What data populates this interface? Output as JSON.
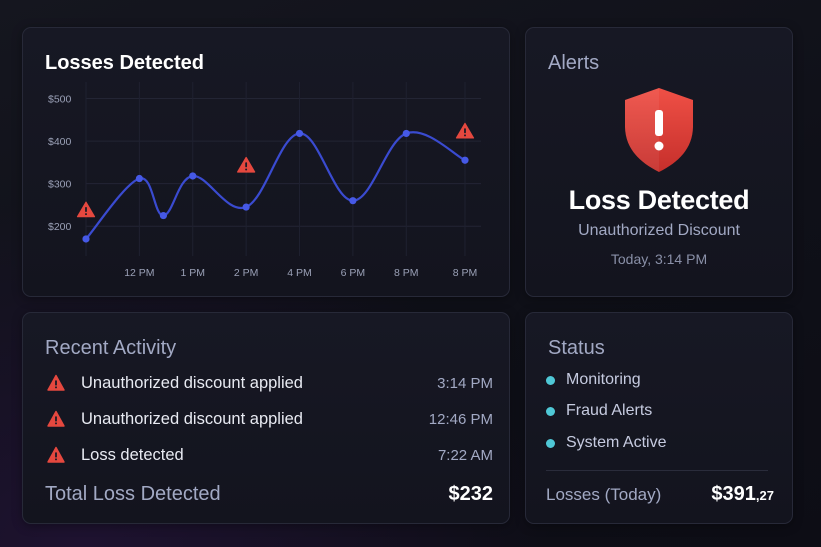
{
  "chart_card": {
    "title": "Losses Detected"
  },
  "chart_data": {
    "type": "line",
    "title": "Losses Detected",
    "xlabel": "",
    "ylabel": "",
    "y_ticks": [
      "$500",
      "$400",
      "$300",
      "$200"
    ],
    "y_tick_values": [
      500,
      400,
      300,
      200
    ],
    "ylim": [
      130,
      520
    ],
    "x_ticks": [
      "12 PM",
      "1 PM",
      "2 PM",
      "4 PM",
      "6 PM",
      "8 PM",
      "8 PM"
    ],
    "x_tick_positions": [
      1,
      2,
      3,
      4,
      5,
      6,
      7.1
    ],
    "grid": true,
    "series": [
      {
        "color": "#3a4bd0",
        "points": [
          {
            "x": 0,
            "y": 170
          },
          {
            "x": 1,
            "y": 312
          },
          {
            "x": 1.45,
            "y": 225
          },
          {
            "x": 2,
            "y": 318
          },
          {
            "x": 3,
            "y": 245
          },
          {
            "x": 4,
            "y": 418
          },
          {
            "x": 5,
            "y": 260
          },
          {
            "x": 6,
            "y": 418
          },
          {
            "x": 7.1,
            "y": 355
          }
        ]
      }
    ],
    "alert_markers": [
      {
        "x": 0,
        "y": 240
      },
      {
        "x": 3,
        "y": 345
      },
      {
        "x": 7.1,
        "y": 425
      }
    ],
    "marker_color": "#e5483f"
  },
  "alert_card": {
    "title": "Alerts",
    "icon": "shield-alert-icon",
    "heading": "Loss Detected",
    "subheading": "Unauthorized Discount",
    "time": "Today, 3:14 PM",
    "shield_color": "#e0403a"
  },
  "activity_card": {
    "title": "Recent Activity",
    "items": [
      {
        "text": "Unauthorized discount applied",
        "time": "3:14 PM",
        "icon": "warning-icon"
      },
      {
        "text": "Unauthorized discount applied",
        "time": "12:46 PM",
        "icon": "warning-icon"
      },
      {
        "text": "Loss detected",
        "time": "7:22 AM",
        "icon": "warning-icon"
      }
    ],
    "total_label": "Total Loss Detected",
    "total_value": "$232"
  },
  "status_card": {
    "title": "Status",
    "items": [
      {
        "label": "Monitoring",
        "color": "#4fc8d6"
      },
      {
        "label": "Fraud Alerts",
        "color": "#4fc8d6"
      },
      {
        "label": "System Active",
        "color": "#4fc8d6"
      }
    ],
    "losses_label": "Losses (Today)",
    "losses_value": "$391",
    "losses_cents": ",27"
  }
}
